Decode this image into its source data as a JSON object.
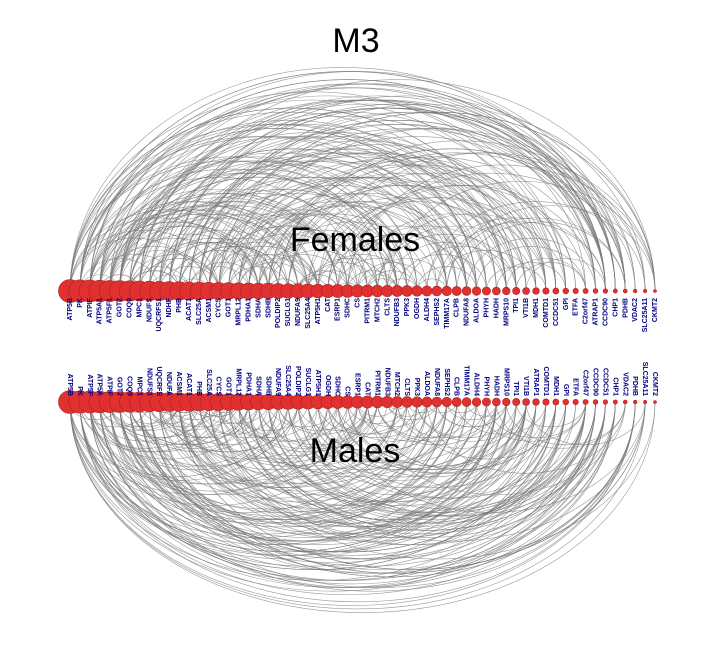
{
  "figure": {
    "title": "M3",
    "top_panel_label": "Females",
    "bottom_panel_label": "Males",
    "node_color": "#e03030",
    "node_stroke": "#b02020",
    "edge_color": "#7a7a7a",
    "label_color": "#000080"
  },
  "females_nodes": [
    "ATP5B",
    "PK",
    "ATPIF",
    "ATP5A1",
    "ATP5F1",
    "GOT2",
    "COQ9",
    "MPC1",
    "NDUFS",
    "UQCRFS1",
    "NDHF",
    "PHB",
    "ACAT1",
    "SLC25A",
    "ACSM1",
    "CYCS",
    "GOT1",
    "MRPL12",
    "PDHA1",
    "SDHA",
    "SDHB",
    "POLDIP2",
    "SUCLG1",
    "NDUFA9",
    "SLC25A4",
    "ATP5H1",
    "CAT",
    "ESRP1",
    "SDHC",
    "CS",
    "PITRM1",
    "MTCH2",
    "CLTS",
    "NDUFB3",
    "PPK3",
    "OGDH",
    "ALDH4",
    "SEPHS2",
    "TIMM17A",
    "CLPB",
    "NDUFA8",
    "ALDOA",
    "PHYH",
    "HADH",
    "MRPS10",
    "TPI1",
    "VTI1B",
    "MDH1",
    "COMTD1",
    "CCDC51",
    "GPI",
    "ETFA",
    "C2orf47",
    "ATRAP1",
    "CCDC90",
    "CHP1",
    "PDHB",
    "VDAC2",
    "SLC25A11",
    "CKMT2"
  ],
  "males_nodes": [
    "ATP5B",
    "PK",
    "ATP5F",
    "ATP5A",
    "ATPIF",
    "GOT2",
    "COQ9",
    "MPC1",
    "NDUFS1",
    "UQCRFS",
    "NDUFA",
    "ACSM1",
    "ACAT1",
    "PHB",
    "SLC25A",
    "CYCS",
    "GOT1",
    "MRPL12",
    "PDHA1",
    "SDHA",
    "SDHB",
    "NDUFA9",
    "SLC25A4",
    "POLDIP2",
    "SUCLG1",
    "ATP5H1",
    "OGDH",
    "SDHC",
    "CS",
    "ESRP1",
    "CAT",
    "PITRM1",
    "NDUFB3",
    "MTCH2",
    "CLTS",
    "PPK3",
    "ALDOA",
    "NDUFA8",
    "SEPHS2",
    "CLPB",
    "TIMM17A",
    "ALDH4",
    "PHYH",
    "HADH",
    "MRPS10",
    "TPI1",
    "VTI1B",
    "ATRAP1",
    "COMTD1",
    "MDH1",
    "GPI",
    "ETFA",
    "C2orf47",
    "CCDC90",
    "CCDC51",
    "CHP1",
    "VDAC2",
    "PDHB",
    "SLC25A11",
    "CKMT2"
  ]
}
